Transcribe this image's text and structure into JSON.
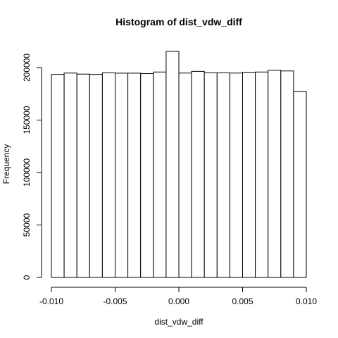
{
  "chart_data": {
    "type": "bar",
    "title": "Histogram of dist_vdw_diff",
    "xlabel": "dist_vdw_diff",
    "ylabel": "Frequency",
    "xlim": [
      -0.01,
      0.01
    ],
    "ylim": [
      0,
      200000
    ],
    "x_ticks": [
      {
        "value": -0.01,
        "label": "-0.010"
      },
      {
        "value": -0.005,
        "label": "-0.005"
      },
      {
        "value": 0.0,
        "label": "0.000"
      },
      {
        "value": 0.005,
        "label": "0.005"
      },
      {
        "value": 0.01,
        "label": "0.010"
      }
    ],
    "y_ticks": [
      {
        "value": 0,
        "label": "0"
      },
      {
        "value": 50000,
        "label": "50000"
      },
      {
        "value": 100000,
        "label": "100000"
      },
      {
        "value": 150000,
        "label": "150000"
      },
      {
        "value": 200000,
        "label": "200000"
      }
    ],
    "bins": [
      {
        "start": -0.01,
        "end": -0.009,
        "count": 193500
      },
      {
        "start": -0.009,
        "end": -0.008,
        "count": 194800
      },
      {
        "start": -0.008,
        "end": -0.007,
        "count": 193800
      },
      {
        "start": -0.007,
        "end": -0.006,
        "count": 193500
      },
      {
        "start": -0.006,
        "end": -0.005,
        "count": 195000
      },
      {
        "start": -0.005,
        "end": -0.004,
        "count": 194700
      },
      {
        "start": -0.004,
        "end": -0.003,
        "count": 194700
      },
      {
        "start": -0.003,
        "end": -0.002,
        "count": 194300
      },
      {
        "start": -0.002,
        "end": -0.001,
        "count": 195800
      },
      {
        "start": -0.001,
        "end": 0.0,
        "count": 215500
      },
      {
        "start": 0.0,
        "end": 0.001,
        "count": 194800
      },
      {
        "start": 0.001,
        "end": 0.002,
        "count": 196400
      },
      {
        "start": 0.002,
        "end": 0.003,
        "count": 195000
      },
      {
        "start": 0.003,
        "end": 0.004,
        "count": 195000
      },
      {
        "start": 0.004,
        "end": 0.005,
        "count": 194800
      },
      {
        "start": 0.005,
        "end": 0.006,
        "count": 195600
      },
      {
        "start": 0.006,
        "end": 0.007,
        "count": 195800
      },
      {
        "start": 0.007,
        "end": 0.008,
        "count": 197500
      },
      {
        "start": 0.008,
        "end": 0.009,
        "count": 196800
      },
      {
        "start": 0.009,
        "end": 0.01,
        "count": 177300
      }
    ],
    "bar_fill": "#ffffff",
    "bar_stroke": "#000000",
    "grid": false,
    "legend": "none"
  }
}
